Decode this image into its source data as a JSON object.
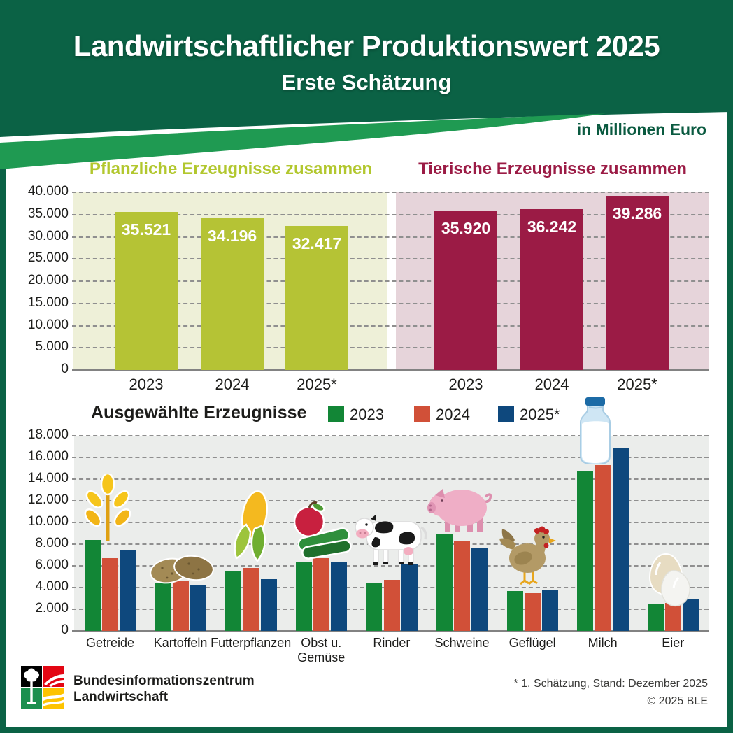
{
  "header": {
    "title": "Landwirtschaftlicher Produktionswert 2025",
    "subtitle": "Erste Schätzung",
    "unit_label": "in Millionen Euro"
  },
  "colors": {
    "header_green": "#0b6245",
    "swoosh_green": "#1f9a52",
    "unit_text": "#0a5a40",
    "plants_bar": "#b5c335",
    "plants_bg": "#eef0d8",
    "plants_title": "#b2c72e",
    "animals_bar": "#9b1b45",
    "animals_bg": "#e6d4da",
    "animals_title": "#9b1b45",
    "series_2023": "#128636",
    "series_2024": "#d15038",
    "series_2025": "#0e487d",
    "bottom_bg": "#ebedeb",
    "grid": "#8f8f8f",
    "baseline": "#828282"
  },
  "axes": {
    "top_ticks": [
      "40.000",
      "35.000",
      "30.000",
      "25.000",
      "20.000",
      "15.000",
      "10.000",
      "5.000",
      "0"
    ],
    "bottom_ticks": [
      "18.000",
      "16.000",
      "14.000",
      "12.000",
      "10.000",
      "8.000",
      "6.000",
      "4.000",
      "2.000",
      "0"
    ]
  },
  "chart_data": [
    {
      "id": "plants",
      "type": "bar",
      "title": "Pflanzliche Erzeugnisse zusammen",
      "categories": [
        "2023",
        "2024",
        "2025*"
      ],
      "values": [
        35521,
        34196,
        32417
      ],
      "value_labels": [
        "35.521",
        "34.196",
        "32.417"
      ],
      "ylim": [
        0,
        40000
      ],
      "grid": true,
      "unit": "Millionen Euro"
    },
    {
      "id": "animals",
      "type": "bar",
      "title": "Tierische Erzeugnisse zusammen",
      "categories": [
        "2023",
        "2024",
        "2025*"
      ],
      "values": [
        35920,
        36242,
        39286
      ],
      "value_labels": [
        "35.920",
        "36.242",
        "39.286"
      ],
      "ylim": [
        0,
        40000
      ],
      "grid": true,
      "unit": "Millionen Euro"
    },
    {
      "id": "selected",
      "type": "bar",
      "title": "Ausgewählte Erzeugnisse",
      "categories": [
        "Getreide",
        "Kartoffeln",
        "Futterpflanzen",
        "Obst u.\nGemüse",
        "Rinder",
        "Schweine",
        "Geflügel",
        "Milch",
        "Eier"
      ],
      "series": [
        {
          "name": "2023",
          "color": "#128636",
          "values": [
            8400,
            4400,
            5500,
            6300,
            4400,
            8900,
            3700,
            14700,
            2500
          ]
        },
        {
          "name": "2024",
          "color": "#d15038",
          "values": [
            6700,
            4600,
            5800,
            6700,
            4700,
            8300,
            3500,
            15300,
            2600
          ]
        },
        {
          "name": "2025*",
          "color": "#0e487d",
          "values": [
            7400,
            4200,
            4800,
            6300,
            6200,
            7600,
            3800,
            16900,
            3000
          ]
        }
      ],
      "ylim": [
        0,
        18000
      ],
      "grid": true,
      "legend_position": "top",
      "unit": "Millionen Euro"
    }
  ],
  "icons": [
    "wheat",
    "potatoes",
    "corn",
    "fruit-vegetables",
    "cow",
    "pig",
    "chicken",
    "milk-bottle",
    "eggs",
    "ble-logo"
  ],
  "footer": {
    "org_line1": "Bundesinformationszentrum",
    "org_line2": "Landwirtschaft",
    "footnote": "* 1. Schätzung, Stand: Dezember 2025",
    "copyright": "© 2025 BLE"
  }
}
